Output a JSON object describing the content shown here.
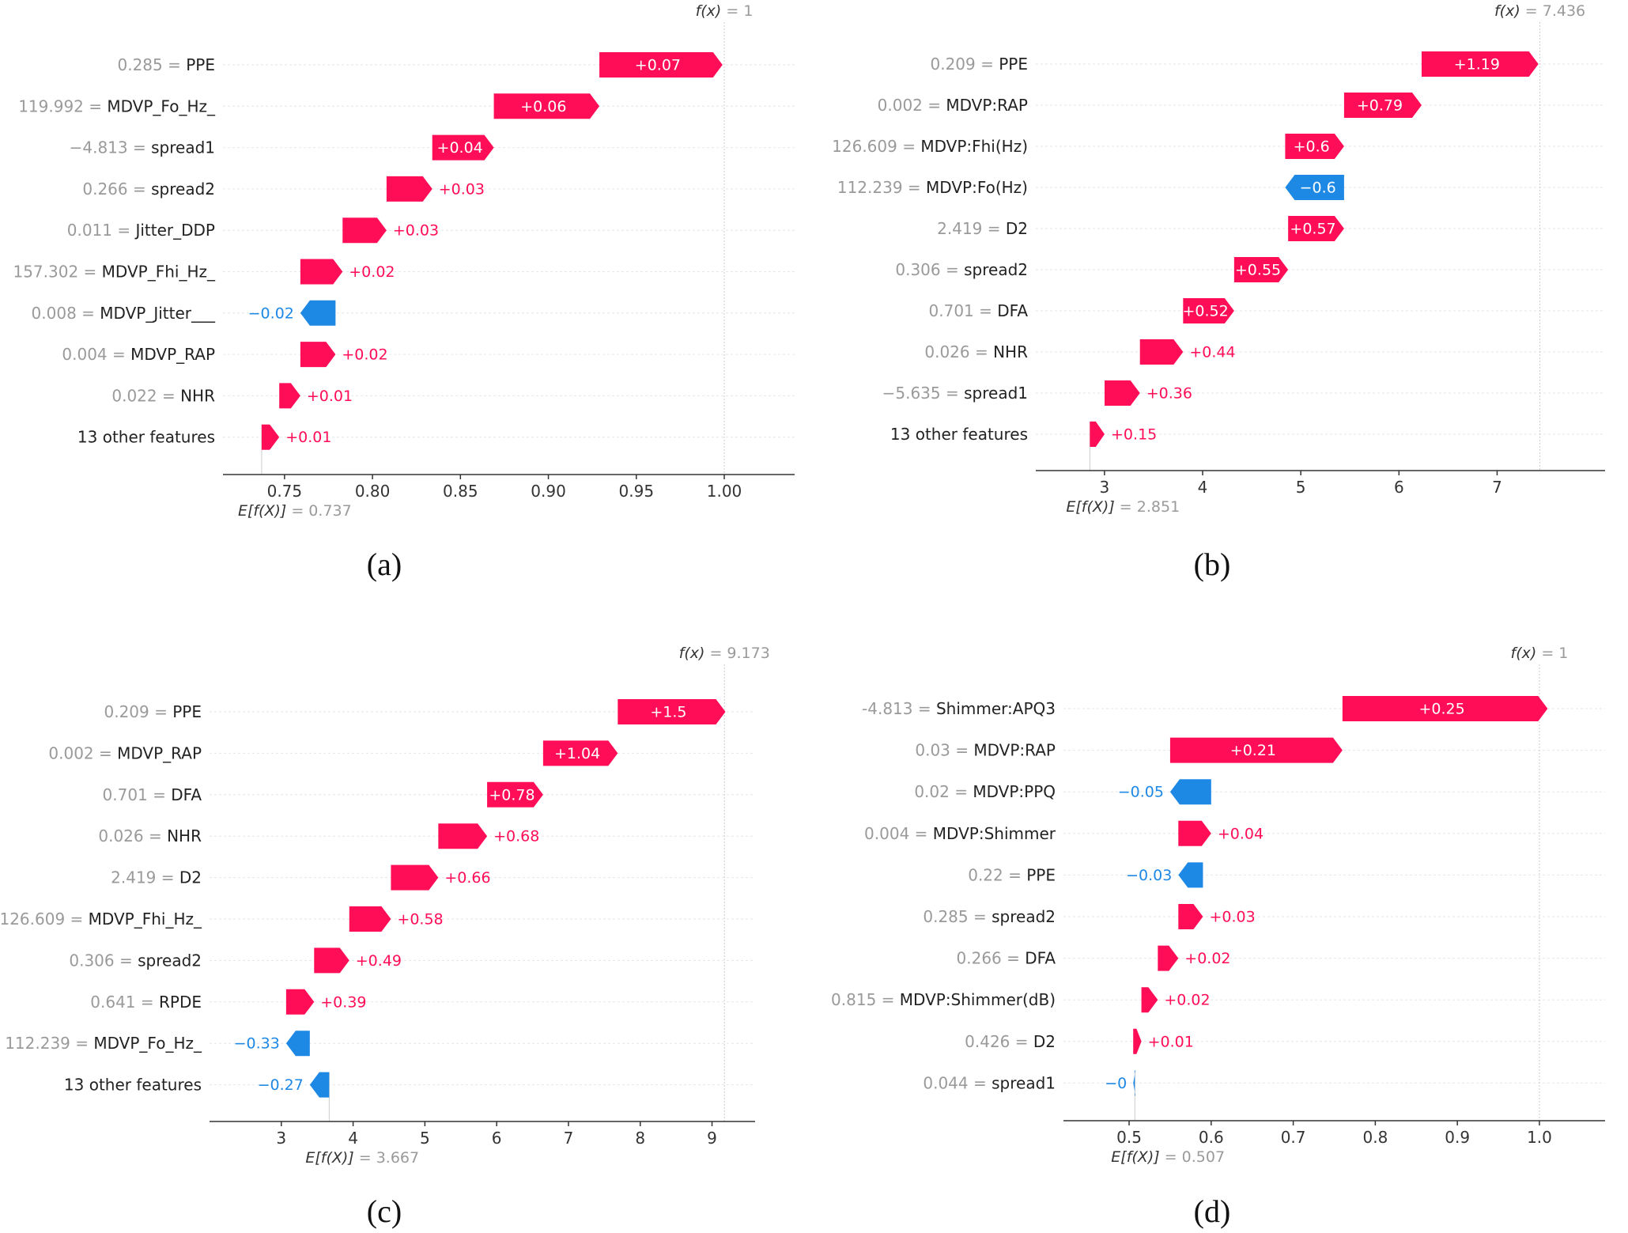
{
  "colors": {
    "positive": "#ff0d57",
    "negative": "#1e88e5"
  },
  "fx_prefix": "f(x)",
  "efx_prefix": "E[f(X)]",
  "chart_data": [
    {
      "type": "waterfall",
      "caption": "(a)",
      "expected_value": 0.737,
      "expected_label": "0.737",
      "output_value": 1,
      "output_label": "1",
      "xlim": [
        0.715,
        1.04
      ],
      "xticks": [
        0.75,
        0.8,
        0.85,
        0.9,
        0.95,
        1.0
      ],
      "xtick_labels": [
        "0.75",
        "0.80",
        "0.85",
        "0.90",
        "0.95",
        "1.00"
      ],
      "features": [
        {
          "value": "0.285",
          "name": "PPE",
          "contribution": 0.07,
          "label": "+0.07"
        },
        {
          "value": "119.992",
          "name": "MDVP_Fo_Hz_",
          "contribution": 0.06,
          "label": "+0.06"
        },
        {
          "value": "−4.813",
          "name": "spread1",
          "contribution": 0.035,
          "label": "+0.04"
        },
        {
          "value": "0.266",
          "name": "spread2",
          "contribution": 0.026,
          "label": "+0.03"
        },
        {
          "value": "0.011",
          "name": "Jitter_DDP",
          "contribution": 0.025,
          "label": "+0.03"
        },
        {
          "value": "157.302",
          "name": "MDVP_Fhi_Hz_",
          "contribution": 0.024,
          "label": "+0.02"
        },
        {
          "value": "0.008",
          "name": "MDVP_Jitter___",
          "contribution": -0.02,
          "label": "−0.02"
        },
        {
          "value": "0.004",
          "name": "MDVP_RAP",
          "contribution": 0.02,
          "label": "+0.02"
        },
        {
          "value": "0.022",
          "name": "NHR",
          "contribution": 0.012,
          "label": "+0.01"
        },
        {
          "value": "",
          "name": "13 other features",
          "contribution": 0.01,
          "label": "+0.01"
        }
      ]
    },
    {
      "type": "waterfall",
      "caption": "(b)",
      "expected_value": 2.851,
      "expected_label": "2.851",
      "output_value": 7.436,
      "output_label": "7.436",
      "xlim": [
        2.3,
        8.1
      ],
      "xticks": [
        3,
        4,
        5,
        6,
        7
      ],
      "xtick_labels": [
        "3",
        "4",
        "5",
        "6",
        "7"
      ],
      "features": [
        {
          "value": "0.209",
          "name": "PPE",
          "contribution": 1.19,
          "label": "+1.19"
        },
        {
          "value": "0.002",
          "name": "MDVP:RAP",
          "contribution": 0.79,
          "label": "+0.79"
        },
        {
          "value": "126.609",
          "name": "MDVP:Fhi(Hz)",
          "contribution": 0.6,
          "label": "+0.6"
        },
        {
          "value": "112.239",
          "name": "MDVP:Fo(Hz)",
          "contribution": -0.6,
          "label": "−0.6"
        },
        {
          "value": "2.419",
          "name": "D2",
          "contribution": 0.57,
          "label": "+0.57"
        },
        {
          "value": "0.306",
          "name": "spread2",
          "contribution": 0.55,
          "label": "+0.55"
        },
        {
          "value": "0.701",
          "name": "DFA",
          "contribution": 0.52,
          "label": "+0.52"
        },
        {
          "value": "0.026",
          "name": "NHR",
          "contribution": 0.44,
          "label": "+0.44"
        },
        {
          "value": "−5.635",
          "name": "spread1",
          "contribution": 0.36,
          "label": "+0.36"
        },
        {
          "value": "",
          "name": "13 other features",
          "contribution": 0.15,
          "label": "+0.15"
        }
      ]
    },
    {
      "type": "waterfall",
      "caption": "(c)",
      "expected_value": 3.667,
      "expected_label": "3.667",
      "output_value": 9.173,
      "output_label": "9.173",
      "xlim": [
        2.0,
        9.6
      ],
      "xticks": [
        3,
        4,
        5,
        6,
        7,
        8,
        9
      ],
      "xtick_labels": [
        "3",
        "4",
        "5",
        "6",
        "7",
        "8",
        "9"
      ],
      "features": [
        {
          "value": "0.209",
          "name": "PPE",
          "contribution": 1.5,
          "label": "+1.5"
        },
        {
          "value": "0.002",
          "name": "MDVP_RAP",
          "contribution": 1.04,
          "label": "+1.04"
        },
        {
          "value": "0.701",
          "name": "DFA",
          "contribution": 0.78,
          "label": "+0.78"
        },
        {
          "value": "0.026",
          "name": "NHR",
          "contribution": 0.68,
          "label": "+0.68"
        },
        {
          "value": "2.419",
          "name": "D2",
          "contribution": 0.66,
          "label": "+0.66"
        },
        {
          "value": "126.609",
          "name": "MDVP_Fhi_Hz_",
          "contribution": 0.58,
          "label": "+0.58"
        },
        {
          "value": "0.306",
          "name": "spread2",
          "contribution": 0.49,
          "label": "+0.49"
        },
        {
          "value": "0.641",
          "name": "RPDE",
          "contribution": 0.39,
          "label": "+0.39"
        },
        {
          "value": "112.239",
          "name": "MDVP_Fo_Hz_",
          "contribution": -0.33,
          "label": "−0.33"
        },
        {
          "value": "",
          "name": "13 other features",
          "contribution": -0.27,
          "label": "−0.27"
        }
      ]
    },
    {
      "type": "waterfall",
      "caption": "(d)",
      "expected_value": 0.507,
      "expected_label": "0.507",
      "output_value": 1,
      "output_label": "1",
      "xlim": [
        0.42,
        1.08
      ],
      "xticks": [
        0.5,
        0.6,
        0.7,
        0.8,
        0.9,
        1.0
      ],
      "xtick_labels": [
        "0.5",
        "0.6",
        "0.7",
        "0.8",
        "0.9",
        "1.0"
      ],
      "features": [
        {
          "value": "-4.813",
          "name": "Shimmer:APQ3",
          "contribution": 0.25,
          "label": "+0.25"
        },
        {
          "value": "0.03",
          "name": "MDVP:RAP",
          "contribution": 0.21,
          "label": "+0.21"
        },
        {
          "value": "0.02",
          "name": "MDVP:PPQ",
          "contribution": -0.05,
          "label": "−0.05"
        },
        {
          "value": "0.004",
          "name": "MDVP:Shimmer",
          "contribution": 0.04,
          "label": "+0.04"
        },
        {
          "value": "0.22",
          "name": "PPE",
          "contribution": -0.03,
          "label": "−0.03"
        },
        {
          "value": "0.285",
          "name": "spread2",
          "contribution": 0.03,
          "label": "+0.03"
        },
        {
          "value": "0.266",
          "name": "DFA",
          "contribution": 0.025,
          "label": "+0.02"
        },
        {
          "value": "0.815",
          "name": "MDVP:Shimmer(dB)",
          "contribution": 0.02,
          "label": "+0.02"
        },
        {
          "value": "0.426",
          "name": "D2",
          "contribution": 0.01,
          "label": "+0.01"
        },
        {
          "value": "0.044",
          "name": "spread1",
          "contribution": -0.002,
          "label": "−0"
        }
      ]
    }
  ]
}
